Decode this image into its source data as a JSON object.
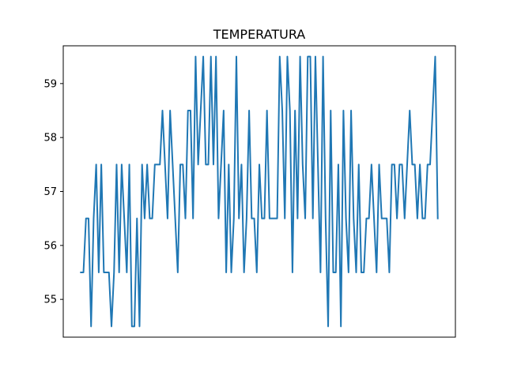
{
  "chart_data": {
    "type": "line",
    "title": "TEMPERATURA",
    "xlabel": "",
    "ylabel": "",
    "ylim": [
      54.3,
      59.7
    ],
    "yticks": [
      55,
      56,
      57,
      58,
      59
    ],
    "xticks_visible": false,
    "grid": false,
    "line_color": "#1f77b4",
    "series": [
      {
        "values": [
          55.5,
          55.5,
          56.5,
          56.5,
          54.5,
          56.5,
          57.5,
          55.5,
          57.5,
          55.5,
          55.5,
          55.5,
          54.5,
          55.5,
          57.5,
          55.5,
          57.5,
          56.5,
          55.5,
          57.5,
          54.5,
          54.5,
          56.5,
          54.5,
          57.5,
          56.5,
          57.5,
          56.5,
          56.5,
          57.5,
          57.5,
          57.5,
          58.5,
          57.5,
          56.5,
          58.5,
          57.5,
          56.5,
          55.5,
          57.5,
          57.5,
          56.5,
          58.5,
          58.5,
          56.5,
          59.5,
          57.5,
          58.5,
          59.5,
          57.5,
          57.5,
          59.5,
          57.5,
          59.5,
          56.5,
          57.5,
          58.5,
          55.5,
          57.5,
          55.5,
          56.5,
          59.5,
          56.5,
          57.5,
          55.5,
          56.5,
          58.5,
          56.5,
          56.5,
          55.5,
          57.5,
          56.5,
          56.5,
          58.5,
          56.5,
          56.5,
          56.5,
          56.5,
          59.5,
          58.5,
          56.5,
          59.5,
          58.5,
          55.5,
          58.5,
          56.5,
          59.5,
          57.5,
          56.5,
          59.5,
          59.5,
          56.5,
          59.5,
          57.5,
          55.5,
          59.5,
          56.5,
          54.5,
          58.5,
          55.5,
          55.5,
          57.5,
          54.5,
          58.5,
          56.5,
          55.5,
          58.5,
          56.5,
          55.5,
          57.5,
          55.5,
          55.5,
          56.5,
          56.5,
          57.5,
          56.5,
          55.5,
          57.5,
          56.5,
          56.5,
          56.5,
          55.5,
          57.5,
          57.5,
          56.5,
          57.5,
          57.5,
          56.5,
          57.5,
          58.5,
          57.5,
          57.5,
          56.5,
          57.5,
          56.5,
          56.5,
          57.5,
          57.5,
          58.5,
          59.5,
          56.5
        ]
      }
    ]
  }
}
